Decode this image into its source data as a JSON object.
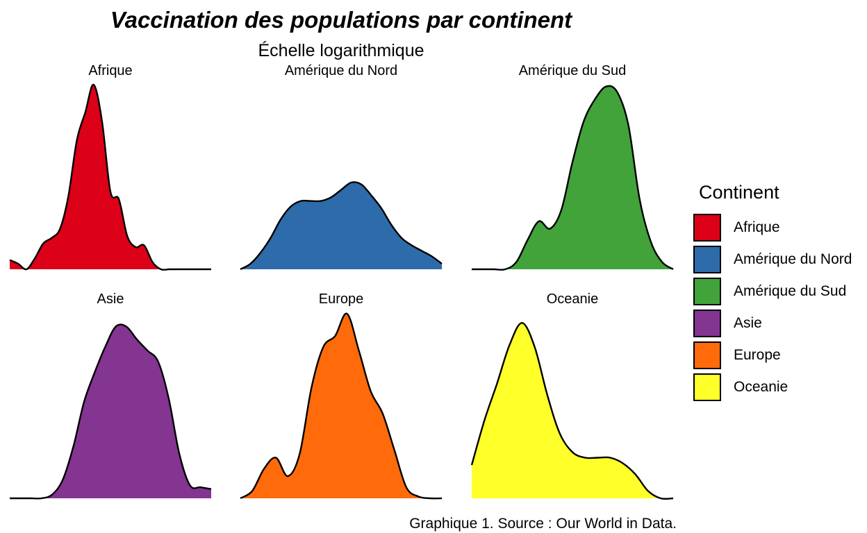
{
  "chart_data": {
    "type": "area",
    "subtype": "density-ridge-facets",
    "title": "Vaccination des populations par continent",
    "subtitle": "Échelle logarithmique",
    "caption": "Graphique 1. Source : Our World in Data.",
    "facet_layout": {
      "rows": 2,
      "cols": 3
    },
    "axes": "hidden",
    "x_scale": "log",
    "legend": {
      "title": "Continent",
      "position": "right"
    },
    "series": [
      {
        "name": "Afrique",
        "color": "#DC0018",
        "density": [
          0.05,
          0.03,
          0.0,
          0.06,
          0.14,
          0.17,
          0.22,
          0.4,
          0.7,
          0.85,
          1.0,
          0.8,
          0.42,
          0.38,
          0.18,
          0.12,
          0.13,
          0.04,
          0.0,
          0,
          0,
          0,
          0,
          0,
          0
        ]
      },
      {
        "name": "Amérique du Nord",
        "color": "#2E6BAA",
        "density": [
          0.0,
          0.03,
          0.09,
          0.17,
          0.27,
          0.34,
          0.37,
          0.37,
          0.37,
          0.39,
          0.43,
          0.47,
          0.46,
          0.4,
          0.33,
          0.24,
          0.17,
          0.13,
          0.1,
          0.07,
          0.03
        ]
      },
      {
        "name": "Amérique du Sud",
        "color": "#41A33A",
        "density": [
          0.0,
          0.0,
          0.0,
          0.0,
          0.04,
          0.16,
          0.26,
          0.22,
          0.32,
          0.58,
          0.8,
          0.92,
          0.99,
          0.96,
          0.78,
          0.38,
          0.15,
          0.04,
          0.0
        ]
      },
      {
        "name": "Asie",
        "color": "#843491",
        "density": [
          0.0,
          0.0,
          0.0,
          0.0,
          0.02,
          0.1,
          0.28,
          0.52,
          0.68,
          0.82,
          0.93,
          0.93,
          0.86,
          0.8,
          0.74,
          0.54,
          0.24,
          0.07,
          0.06,
          0.05
        ]
      },
      {
        "name": "Europe",
        "color": "#FF6B0B",
        "density": [
          0.0,
          0.04,
          0.16,
          0.22,
          0.12,
          0.24,
          0.6,
          0.82,
          0.88,
          1.0,
          0.8,
          0.58,
          0.46,
          0.26,
          0.06,
          0.01,
          0.0,
          0
        ]
      },
      {
        "name": "Oceanie",
        "color": "#FFFF2A",
        "density": [
          0.18,
          0.42,
          0.62,
          0.83,
          0.95,
          0.82,
          0.56,
          0.35,
          0.25,
          0.22,
          0.22,
          0.22,
          0.19,
          0.13,
          0.04,
          0.0,
          0
        ]
      }
    ]
  }
}
